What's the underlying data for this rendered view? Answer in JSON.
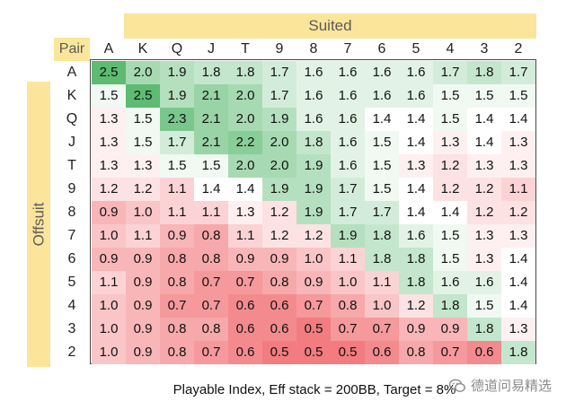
{
  "chart_data": {
    "type": "heatmap",
    "suited_label": "Suited",
    "offsuit_label": "Offsuit",
    "corner_label": "Pair",
    "columns": [
      "A",
      "K",
      "Q",
      "J",
      "T",
      "9",
      "8",
      "7",
      "6",
      "5",
      "4",
      "3",
      "2"
    ],
    "rows": [
      "A",
      "K",
      "Q",
      "J",
      "T",
      "9",
      "8",
      "7",
      "6",
      "5",
      "4",
      "3",
      "2"
    ],
    "values": [
      [
        2.5,
        2.0,
        1.9,
        1.8,
        1.8,
        1.7,
        1.6,
        1.6,
        1.6,
        1.6,
        1.7,
        1.8,
        1.7
      ],
      [
        1.5,
        2.5,
        1.9,
        2.1,
        2.0,
        1.7,
        1.6,
        1.6,
        1.6,
        1.6,
        1.5,
        1.5,
        1.5
      ],
      [
        1.3,
        1.5,
        2.3,
        2.1,
        2.0,
        1.9,
        1.6,
        1.6,
        1.4,
        1.4,
        1.5,
        1.4,
        1.4
      ],
      [
        1.3,
        1.5,
        1.7,
        2.1,
        2.2,
        2.0,
        1.8,
        1.6,
        1.5,
        1.4,
        1.3,
        1.4,
        1.3
      ],
      [
        1.3,
        1.3,
        1.5,
        1.5,
        2.0,
        2.0,
        1.9,
        1.6,
        1.5,
        1.3,
        1.2,
        1.3,
        1.3
      ],
      [
        1.2,
        1.2,
        1.1,
        1.4,
        1.4,
        1.9,
        1.9,
        1.7,
        1.5,
        1.4,
        1.2,
        1.2,
        1.1
      ],
      [
        0.9,
        1.0,
        1.1,
        1.1,
        1.3,
        1.2,
        1.9,
        1.7,
        1.7,
        1.4,
        1.4,
        1.2,
        1.2
      ],
      [
        1.0,
        1.1,
        0.9,
        0.8,
        1.1,
        1.2,
        1.2,
        1.9,
        1.8,
        1.6,
        1.5,
        1.3,
        1.3
      ],
      [
        0.9,
        0.9,
        0.8,
        0.8,
        0.9,
        0.9,
        1.0,
        1.1,
        1.8,
        1.8,
        1.5,
        1.3,
        1.4
      ],
      [
        1.1,
        0.9,
        0.8,
        0.7,
        0.7,
        0.8,
        0.9,
        1.0,
        1.1,
        1.8,
        1.6,
        1.6,
        1.4
      ],
      [
        1.0,
        0.9,
        0.7,
        0.7,
        0.6,
        0.6,
        0.7,
        0.8,
        1.0,
        1.2,
        1.8,
        1.5,
        1.4
      ],
      [
        1.0,
        0.9,
        0.8,
        0.8,
        0.6,
        0.6,
        0.5,
        0.7,
        0.7,
        0.9,
        0.9,
        1.8,
        1.3
      ],
      [
        1.0,
        0.9,
        0.8,
        0.7,
        0.6,
        0.5,
        0.5,
        0.5,
        0.6,
        0.8,
        0.7,
        0.6,
        1.8
      ]
    ],
    "caption": "Playable Index, Eff stack = 200BB, Target = 8%",
    "colors": {
      "low": "#f27c80",
      "mid": "#ffffff",
      "high": "#5dbb72"
    },
    "scale": [
      0.5,
      1.4,
      2.5
    ]
  },
  "watermark": {
    "text": "德道问易精选",
    "icon": "wechat-icon"
  }
}
